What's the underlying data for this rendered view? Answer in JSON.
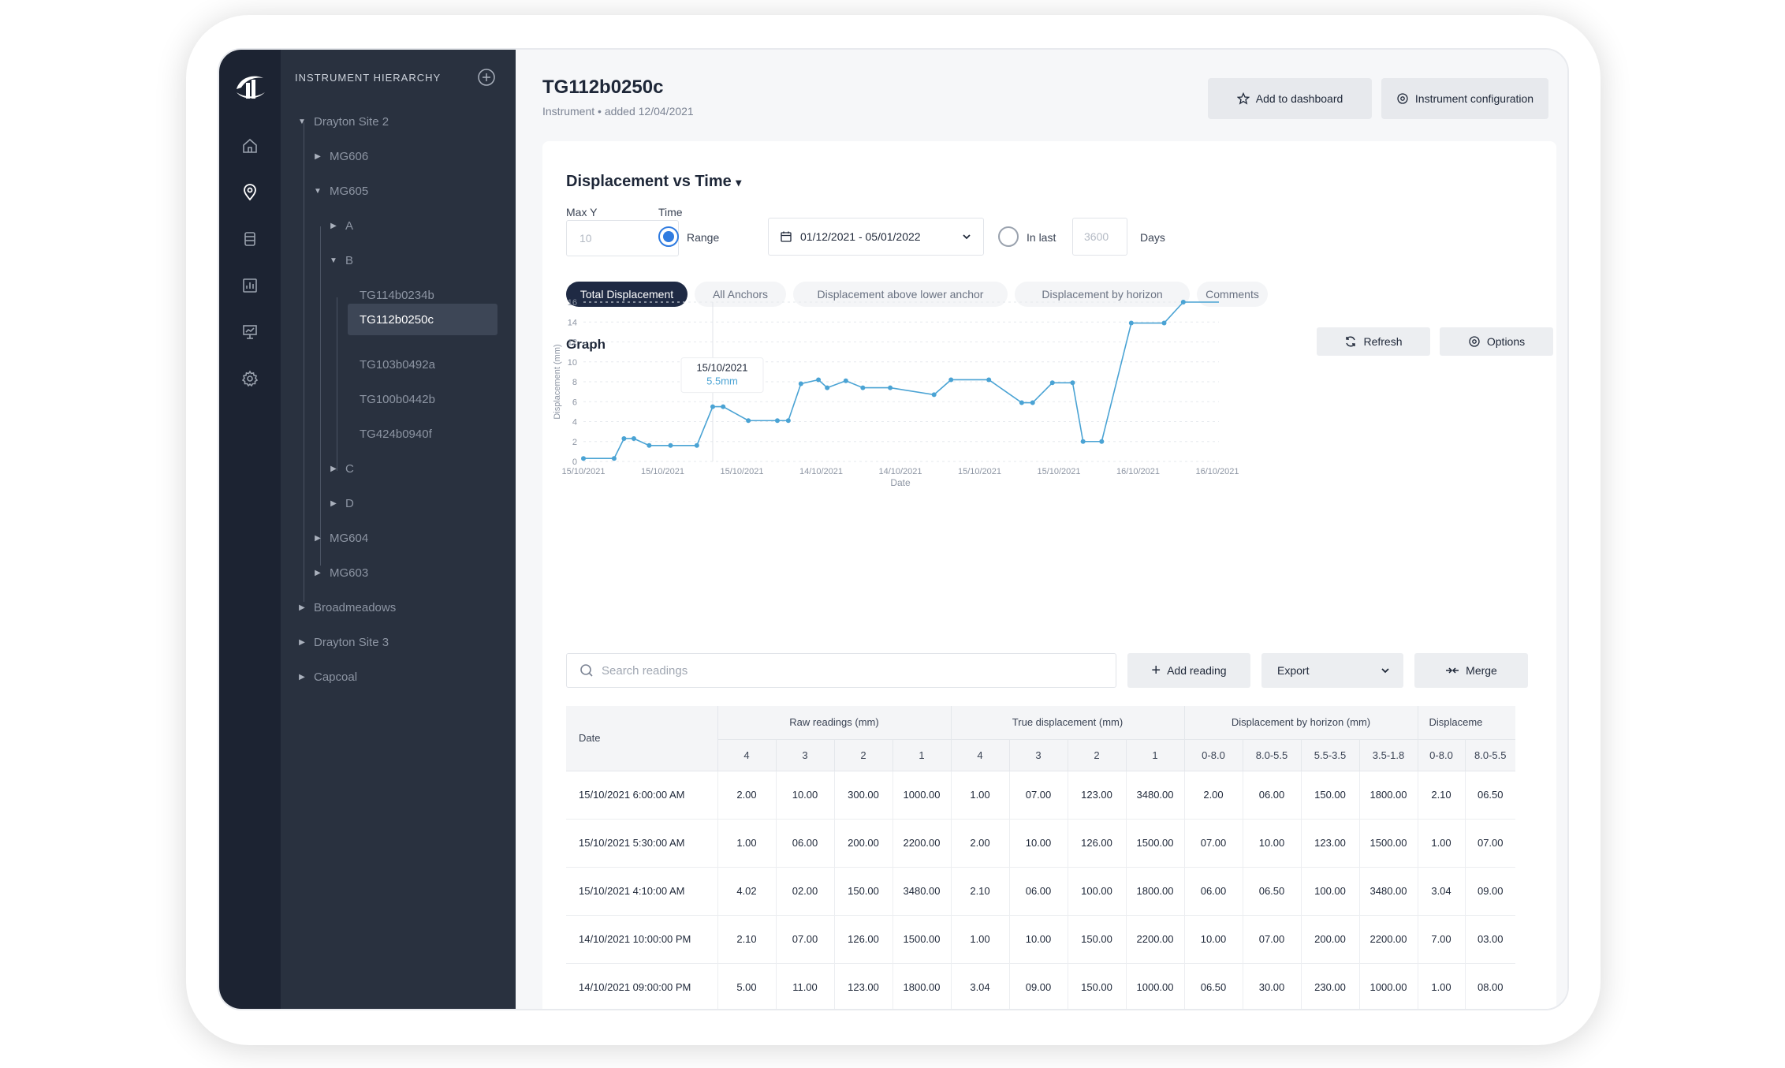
{
  "sidebar": {
    "rail_icons": [
      "logo-icon",
      "home-icon",
      "location-pin-icon",
      "database-icon",
      "bar-chart-icon",
      "presentation-icon",
      "gear-icon"
    ],
    "tree_title": "INSTRUMENT HIERARCHY",
    "tree": [
      {
        "label": "Drayton Site 2",
        "caret": "▼"
      },
      {
        "label": "MG606",
        "caret": "▶"
      },
      {
        "label": "MG605",
        "caret": "▼"
      },
      {
        "label": "A",
        "caret": "▶"
      },
      {
        "label": "B",
        "caret": "▼"
      },
      {
        "label": "TG114b0234b"
      },
      {
        "label": "TG112b0250c"
      },
      {
        "label": "TG103b0492a"
      },
      {
        "label": "TG100b0442b"
      },
      {
        "label": "TG424b0940f"
      },
      {
        "label": "C",
        "caret": "▶"
      },
      {
        "label": "D",
        "caret": "▶"
      },
      {
        "label": "MG604",
        "caret": "▶"
      },
      {
        "label": "MG603",
        "caret": "▶"
      },
      {
        "label": "Broadmeadows",
        "caret": "▶"
      },
      {
        "label": "Drayton Site 3",
        "caret": "▶"
      },
      {
        "label": "Capcoal",
        "caret": "▶"
      }
    ]
  },
  "header": {
    "title": "TG112b0250c",
    "subtitle": "Instrument • added 12/04/2021",
    "add_to_dashboard": "Add to dashboard",
    "instrument_config": "Instrument configuration"
  },
  "card": {
    "title": "Displacement vs Time",
    "title_caret": "▾",
    "max_y_label": "Max Y",
    "max_y_placeholder": "10",
    "time_label": "Time",
    "range_label": "Range",
    "range_value": "01/12/2021 - 05/01/2022",
    "in_last_label": "In last",
    "in_last_placeholder": "3600",
    "days_label": "Days",
    "tabs": [
      "Total Displacement",
      "All Anchors",
      "Displacement above lower anchor",
      "Displacement by horizon",
      "Comments"
    ],
    "active_tab": 0,
    "graph_title": "Graph",
    "refresh_label": "Refresh",
    "options_label": "Options"
  },
  "chart_data": {
    "type": "line",
    "xlabel": "Date",
    "ylabel": "Displacement (mm)",
    "ylim": [
      0,
      16
    ],
    "yticks": [
      0,
      2,
      4,
      6,
      8,
      10,
      12,
      14,
      16
    ],
    "x_tick_labels": [
      "15/10/2021",
      "15/10/2021",
      "15/10/2021",
      "14/10/2021",
      "14/10/2021",
      "15/10/2021",
      "15/10/2021",
      "16/10/2021",
      "16/10/2021"
    ],
    "grid": "horizontal dashed",
    "line_color": "#4aa3d4",
    "series": [
      {
        "values": [
          0.3,
          0.3,
          2.3,
          2.3,
          1.6,
          1.6,
          1.6,
          5.5,
          5.5,
          4.1,
          4.1,
          4.1,
          7.8,
          8.2,
          7.4,
          8.1,
          7.4,
          7.4,
          6.7,
          8.2,
          8.2,
          5.9,
          5.9,
          7.9,
          7.9,
          2.0,
          2.0,
          13.9,
          13.9,
          16.0,
          16.0
        ],
        "x_positions": [
          0,
          0.056,
          0.074,
          0.092,
          0.12,
          0.159,
          0.207,
          0.236,
          0.255,
          0.301,
          0.354,
          0.374,
          0.397,
          0.429,
          0.445,
          0.479,
          0.51,
          0.56,
          0.64,
          0.671,
          0.74,
          0.8,
          0.82,
          0.856,
          0.893,
          0.912,
          0.946,
          1.0,
          1.06,
          1.095,
          1.16
        ]
      }
    ],
    "tooltip": {
      "date": "15/10/2021",
      "value": "5.5mm",
      "point_index": 7
    }
  },
  "readings": {
    "search_placeholder": "Search readings",
    "add_reading": "Add reading",
    "export": "Export",
    "merge": "Merge",
    "date_header": "Date",
    "groups": [
      {
        "label": "Raw readings (mm)",
        "cols": [
          "4",
          "3",
          "2",
          "1"
        ]
      },
      {
        "label": "True displacement (mm)",
        "cols": [
          "4",
          "3",
          "2",
          "1"
        ]
      },
      {
        "label": "Displacement by horizon (mm)",
        "cols": [
          "0-8.0",
          "8.0-5.5",
          "5.5-3.5",
          "3.5-1.8"
        ]
      },
      {
        "label": "Displaceme",
        "cols": [
          "0-8.0",
          "8.0-5.5"
        ]
      }
    ],
    "rows": [
      {
        "date": "15/10/2021 6:00:00 AM",
        "cells": [
          "2.00",
          "10.00",
          "300.00",
          "1000.00",
          "1.00",
          "07.00",
          "123.00",
          "3480.00",
          "2.00",
          "06.00",
          "150.00",
          "1800.00",
          "2.10",
          "06.50"
        ]
      },
      {
        "date": "15/10/2021 5:30:00 AM",
        "cells": [
          "1.00",
          "06.00",
          "200.00",
          "2200.00",
          "2.00",
          "10.00",
          "126.00",
          "1500.00",
          "07.00",
          "10.00",
          "123.00",
          "1500.00",
          "1.00",
          "07.00"
        ]
      },
      {
        "date": "15/10/2021 4:10:00 AM",
        "cells": [
          "4.02",
          "02.00",
          "150.00",
          "3480.00",
          "2.10",
          "06.00",
          "100.00",
          "1800.00",
          "06.00",
          "06.50",
          "100.00",
          "3480.00",
          "3.04",
          "09.00"
        ]
      },
      {
        "date": "14/10/2021 10:00:00 PM",
        "cells": [
          "2.10",
          "07.00",
          "126.00",
          "1500.00",
          "1.00",
          "10.00",
          "150.00",
          "2200.00",
          "10.00",
          "07.00",
          "200.00",
          "2200.00",
          "7.00",
          "03.00"
        ]
      },
      {
        "date": "14/10/2021 09:00:00 PM",
        "cells": [
          "5.00",
          "11.00",
          "123.00",
          "1800.00",
          "3.04",
          "09.00",
          "150.00",
          "1000.00",
          "06.50",
          "30.00",
          "230.00",
          "1000.00",
          "1.00",
          "08.00"
        ]
      }
    ]
  }
}
